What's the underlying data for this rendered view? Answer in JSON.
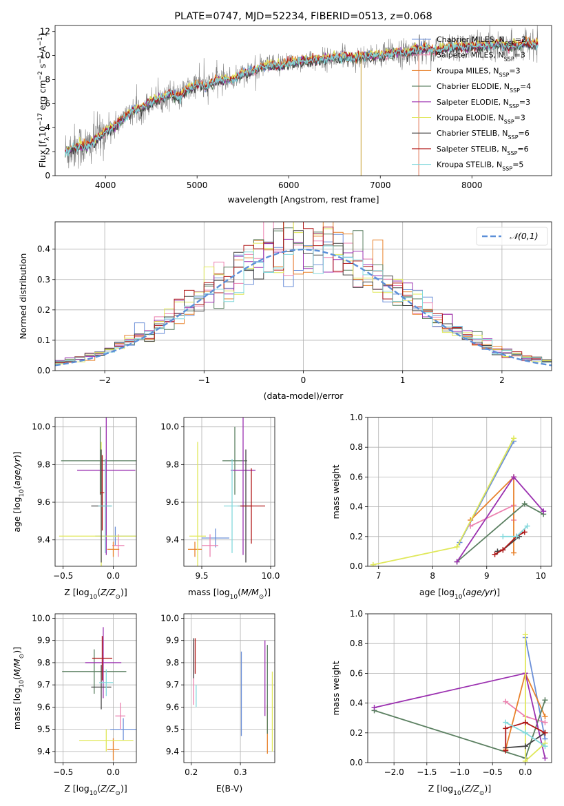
{
  "chart_data": [
    {
      "id": "spectrum",
      "type": "line",
      "title": "PLATE=0747, MJD=52234, FIBERID=0513, z=0.068",
      "xlabel": "wavelength [Angstrom, rest frame]",
      "ylabel": "Flux [f_λ 10^-17 erg cm^-2 s^-1 A^-1]",
      "xlim": [
        3450,
        8870
      ],
      "ylim": [
        0,
        12.5
      ],
      "xticks": [
        4000,
        5000,
        6000,
        7000,
        8000
      ],
      "yticks": [
        0,
        2,
        4,
        6,
        8,
        10,
        12
      ],
      "data_series": {
        "name": "data",
        "color": "#808080",
        "x": [
          3560,
          3700,
          3800,
          3900,
          4000,
          4100,
          4200,
          4300,
          4400,
          4500,
          4600,
          4700,
          4800,
          4900,
          5000,
          5100,
          5200,
          5300,
          5400,
          5500,
          5600,
          5700,
          5800,
          5900,
          6000,
          6100,
          6200,
          6300,
          6400,
          6500,
          6600,
          6700,
          6800,
          6900,
          7000,
          7100,
          7200,
          7300,
          7400,
          7500,
          7600,
          7700,
          7800,
          7900,
          8000,
          8100,
          8200,
          8300,
          8400,
          8500,
          8600,
          8700,
          8800
        ],
        "y": [
          2.0,
          2.5,
          2.4,
          3.0,
          3.7,
          4.1,
          4.8,
          5.4,
          5.6,
          6.2,
          6.4,
          6.8,
          6.5,
          7.2,
          7.6,
          7.4,
          7.9,
          8.0,
          8.0,
          8.5,
          8.7,
          9.0,
          9.2,
          9.1,
          9.3,
          9.5,
          9.6,
          9.6,
          9.7,
          9.8,
          9.9,
          9.8,
          9.9,
          10.0,
          10.0,
          10.1,
          10.3,
          10.2,
          10.5,
          10.6,
          10.4,
          10.6,
          10.7,
          10.7,
          10.8,
          10.8,
          10.9,
          10.9,
          10.8,
          10.9,
          11.0,
          10.9,
          10.9
        ]
      },
      "series": [
        {
          "name": "Chabrier MILES, N_SSP=2",
          "color": "#6b8fd8",
          "offset": 0.05
        },
        {
          "name": "Salpeter MILES, N_SSP=3",
          "color": "#ec82b0",
          "offset": -0.05
        },
        {
          "name": "Kroupa MILES, N_SSP=3",
          "color": "#e8822c",
          "offset": 0.1
        },
        {
          "name": "Chabrier ELODIE, N_SSP=4",
          "color": "#5a7f60",
          "offset": -0.1
        },
        {
          "name": "Salpeter ELODIE, N_SSP=3",
          "color": "#9b30b0",
          "offset": 0.0
        },
        {
          "name": "Kroupa ELODIE, N_SSP=3",
          "color": "#e0e85a",
          "offset": 0.15
        },
        {
          "name": "Chabrier STELIB, N_SSP=6",
          "color": "#444444",
          "offset": -0.15
        },
        {
          "name": "Salpeter STELIB, N_SSP=6",
          "color": "#b01818",
          "offset": 0.05
        },
        {
          "name": "Kroupa STELIB, N_SSP=5",
          "color": "#82d8dc",
          "offset": 0.0
        }
      ],
      "legend": "top-right"
    },
    {
      "id": "residuals",
      "type": "histogram",
      "xlabel": "(data-model)/error",
      "ylabel": "Normed distribution",
      "xlim": [
        -2.5,
        2.5
      ],
      "ylim": [
        0,
        0.49
      ],
      "xticks": [
        -2,
        -1,
        0,
        1,
        2
      ],
      "yticks": [
        0.0,
        0.1,
        0.2,
        0.3,
        0.4
      ],
      "reference": {
        "name": "𝒩(0,1)",
        "color": "#5b8fd8",
        "style": "dashed"
      },
      "legend": "top-right",
      "bin_width": 0.1
    },
    {
      "id": "age_vs_Z",
      "type": "errorbar",
      "xlabel": "Z [log10(Z/Z⊙)]",
      "ylabel": "age [log10(age/yr)]",
      "xlim": [
        -0.58,
        0.23
      ],
      "ylim": [
        9.26,
        10.05
      ],
      "xticks": [
        -0.5,
        0.0
      ],
      "yticks": [
        9.4,
        9.6,
        9.8,
        10.0
      ],
      "points": [
        {
          "color": "#6b8fd8",
          "x": 0.02,
          "xerr": 0.2,
          "y": 9.42,
          "yerr": 0.05
        },
        {
          "color": "#ec82b0",
          "x": 0.05,
          "xerr": 0.06,
          "y": 9.37,
          "yerr": 0.06
        },
        {
          "color": "#e8822c",
          "x": 0.0,
          "xerr": 0.06,
          "y": 9.35,
          "yerr": 0.04
        },
        {
          "color": "#5a7f60",
          "x": -0.13,
          "xerr": 0.39,
          "y": 9.82,
          "yerr": 0.18
        },
        {
          "color": "#9b30b0",
          "x": -0.07,
          "xerr": 0.29,
          "y": 9.77,
          "yerr": 0.45
        },
        {
          "color": "#e0e85a",
          "x": -0.12,
          "xerr": 0.42,
          "y": 9.42,
          "yerr": 0.5
        },
        {
          "color": "#444444",
          "x": -0.12,
          "xerr": 0.1,
          "y": 9.58,
          "yerr": 0.3
        },
        {
          "color": "#b01818",
          "x": -0.11,
          "xerr": 0.02,
          "y": 9.65,
          "yerr": 0.2
        },
        {
          "color": "#82d8dc",
          "x": -0.08,
          "xerr": 0.07,
          "y": 9.58,
          "yerr": 0.25
        }
      ]
    },
    {
      "id": "age_vs_mass",
      "type": "errorbar",
      "xlabel": "mass [log10(M/M⊙)]",
      "ylabel": "",
      "xlim": [
        9.37,
        10.03
      ],
      "ylim": [
        9.26,
        10.05
      ],
      "xticks": [
        9.5,
        10.0
      ],
      "yticks": [
        9.4,
        9.6,
        9.8,
        10.0
      ],
      "points": [
        {
          "color": "#6b8fd8",
          "x": 9.6,
          "xerr": 0.1,
          "y": 9.41,
          "yerr": 0.05
        },
        {
          "color": "#ec82b0",
          "x": 9.56,
          "xerr": 0.06,
          "y": 9.37,
          "yerr": 0.06
        },
        {
          "color": "#e8822c",
          "x": 9.45,
          "xerr": 0.05,
          "y": 9.35,
          "yerr": 0.04
        },
        {
          "color": "#5a7f60",
          "x": 9.74,
          "xerr": 0.09,
          "y": 9.82,
          "yerr": 0.18
        },
        {
          "color": "#9b30b0",
          "x": 9.8,
          "xerr": 0.09,
          "y": 9.77,
          "yerr": 0.45
        },
        {
          "color": "#e0e85a",
          "x": 9.47,
          "xerr": 0.06,
          "y": 9.42,
          "yerr": 0.5
        },
        {
          "color": "#444444",
          "x": 9.82,
          "xerr": 0.04,
          "y": 9.58,
          "yerr": 0.3
        },
        {
          "color": "#b01818",
          "x": 9.86,
          "xerr": 0.1,
          "y": 9.58,
          "yerr": 0.2
        },
        {
          "color": "#82d8dc",
          "x": 9.72,
          "xerr": 0.06,
          "y": 9.58,
          "yerr": 0.25
        }
      ]
    },
    {
      "id": "weight_vs_age",
      "type": "line",
      "xlabel": "age  [log10(age/yr)]",
      "ylabel": "mass weight",
      "xlim": [
        6.8,
        10.2
      ],
      "ylim": [
        0,
        1.0
      ],
      "xticks": [
        7,
        8,
        9,
        10
      ],
      "yticks": [
        0.0,
        0.2,
        0.4,
        0.6,
        0.8,
        1.0
      ],
      "series": [
        {
          "color": "#6b8fd8",
          "x": [
            8.5,
            9.5
          ],
          "y": [
            0.16,
            0.84
          ]
        },
        {
          "color": "#ec82b0",
          "x": [
            8.7,
            9.5,
            9.5
          ],
          "y": [
            0.27,
            0.41,
            0.31
          ]
        },
        {
          "color": "#e8822c",
          "x": [
            8.7,
            9.5,
            9.5
          ],
          "y": [
            0.31,
            0.6,
            0.09
          ]
        },
        {
          "color": "#5a7f60",
          "x": [
            8.45,
            9.7,
            10.05
          ],
          "y": [
            0.03,
            0.42,
            0.35
          ]
        },
        {
          "color": "#9b30b0",
          "x": [
            8.45,
            9.5,
            10.05
          ],
          "y": [
            0.03,
            0.6,
            0.37
          ]
        },
        {
          "color": "#e0e85a",
          "x": [
            6.9,
            8.45,
            9.5
          ],
          "y": [
            0.01,
            0.13,
            0.86
          ]
        },
        {
          "color": "#444444",
          "x": [
            9.2,
            9.3,
            9.6
          ],
          "y": [
            0.1,
            0.11,
            0.2
          ]
        },
        {
          "color": "#b01818",
          "x": [
            9.15,
            9.3,
            9.55,
            9.7
          ],
          "y": [
            0.08,
            0.11,
            0.2,
            0.23
          ]
        },
        {
          "color": "#82d8dc",
          "x": [
            9.3,
            9.55,
            9.75
          ],
          "y": [
            0.2,
            0.2,
            0.27
          ]
        }
      ]
    },
    {
      "id": "mass_vs_Z",
      "type": "errorbar",
      "xlabel": "Z [log10(Z/Z⊙)]",
      "ylabel": "mass [log10(M/M⊙)]",
      "xlim": [
        -0.58,
        0.23
      ],
      "ylim": [
        9.35,
        10.02
      ],
      "xticks": [
        -0.5,
        0.0
      ],
      "yticks": [
        9.4,
        9.5,
        9.6,
        9.7,
        9.8,
        9.9,
        10.0
      ],
      "points": [
        {
          "color": "#6b8fd8",
          "x": 0.1,
          "xerr": 0.13,
          "y": 9.5,
          "yerr": 0.05
        },
        {
          "color": "#ec82b0",
          "x": 0.07,
          "xerr": 0.05,
          "y": 9.56,
          "yerr": 0.06
        },
        {
          "color": "#e8822c",
          "x": 0.0,
          "xerr": 0.06,
          "y": 9.41,
          "yerr": 0.05
        },
        {
          "color": "#5a7f60",
          "x": -0.19,
          "xerr": 0.32,
          "y": 9.76,
          "yerr": 0.1
        },
        {
          "color": "#9b30b0",
          "x": -0.1,
          "xerr": 0.18,
          "y": 9.8,
          "yerr": 0.16
        },
        {
          "color": "#e0e85a",
          "x": -0.07,
          "xerr": 0.27,
          "y": 9.45,
          "yerr": 0.05
        },
        {
          "color": "#444444",
          "x": -0.12,
          "xerr": 0.1,
          "y": 9.69,
          "yerr": 0.1
        },
        {
          "color": "#b01818",
          "x": -0.11,
          "xerr": 0.1,
          "y": 9.82,
          "yerr": 0.1
        },
        {
          "color": "#82d8dc",
          "x": -0.07,
          "xerr": 0.07,
          "y": 9.71,
          "yerr": 0.06
        }
      ]
    },
    {
      "id": "mass_vs_ebv",
      "type": "errorbar",
      "xlabel": "E(B-V)",
      "ylabel": "",
      "xlim": [
        0.185,
        0.37
      ],
      "ylim": [
        9.35,
        10.02
      ],
      "xticks": [
        0.2,
        0.3
      ],
      "yticks": [
        9.4,
        9.5,
        9.6,
        9.7,
        9.8,
        9.9,
        10.0
      ],
      "points": [
        {
          "color": "#6b8fd8",
          "x": 0.302,
          "y": 9.66,
          "yerr": 0.19
        },
        {
          "color": "#ec82b0",
          "x": 0.205,
          "y": 9.75,
          "yerr": 0.14
        },
        {
          "color": "#e8822c",
          "x": 0.355,
          "y": 9.5,
          "yerr": 0.11
        },
        {
          "color": "#5a7f60",
          "x": 0.355,
          "y": 9.68,
          "yerr": 0.2
        },
        {
          "color": "#9b30b0",
          "x": 0.35,
          "y": 9.73,
          "yerr": 0.17
        },
        {
          "color": "#e0e85a",
          "x": 0.365,
          "y": 9.58,
          "yerr": 0.18
        },
        {
          "color": "#444444",
          "x": 0.205,
          "y": 9.82,
          "yerr": 0.09
        },
        {
          "color": "#b01818",
          "x": 0.208,
          "y": 9.83,
          "yerr": 0.08
        },
        {
          "color": "#82d8dc",
          "x": 0.21,
          "y": 9.65,
          "yerr": 0.05
        }
      ]
    },
    {
      "id": "weight_vs_Z",
      "type": "line",
      "xlabel": "Z [log10(Z/Z⊙)]",
      "ylabel": "mass weight",
      "xlim": [
        -2.4,
        0.4
      ],
      "ylim": [
        0,
        1.0
      ],
      "xticks": [
        -2.0,
        -1.5,
        -1.0,
        -0.5,
        0.0
      ],
      "yticks": [
        0.0,
        0.2,
        0.4,
        0.6,
        0.8,
        1.0
      ],
      "series": [
        {
          "color": "#6b8fd8",
          "x": [
            0.0,
            0.3
          ],
          "y": [
            0.84,
            0.16
          ]
        },
        {
          "color": "#ec82b0",
          "x": [
            -0.3,
            0.0,
            0.3
          ],
          "y": [
            0.41,
            0.31,
            0.27
          ]
        },
        {
          "color": "#e8822c",
          "x": [
            -0.3,
            0.0,
            0.3
          ],
          "y": [
            0.09,
            0.6,
            0.31
          ]
        },
        {
          "color": "#5a7f60",
          "x": [
            -2.3,
            0.0,
            0.3
          ],
          "y": [
            0.35,
            0.03,
            0.42
          ]
        },
        {
          "color": "#9b30b0",
          "x": [
            -2.3,
            0.0,
            0.3
          ],
          "y": [
            0.37,
            0.6,
            0.03
          ]
        },
        {
          "color": "#e0e85a",
          "x": [
            0.0,
            0.0,
            0.3
          ],
          "y": [
            0.86,
            0.01,
            0.13
          ]
        },
        {
          "color": "#444444",
          "x": [
            -0.3,
            0.0,
            0.3
          ],
          "y": [
            0.1,
            0.11,
            0.2
          ]
        },
        {
          "color": "#b01818",
          "x": [
            -0.3,
            -0.3,
            0.0,
            0.3
          ],
          "y": [
            0.08,
            0.23,
            0.27,
            0.2
          ]
        },
        {
          "color": "#82d8dc",
          "x": [
            -0.3,
            0.0,
            0.3
          ],
          "y": [
            0.27,
            0.2,
            0.11
          ]
        }
      ]
    }
  ]
}
